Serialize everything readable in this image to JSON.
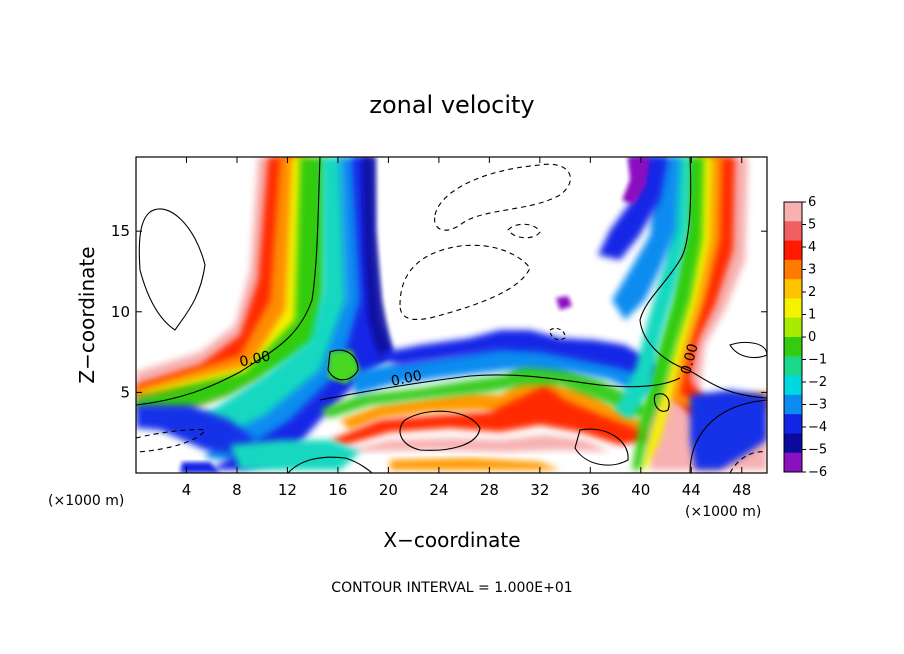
{
  "chart_data": {
    "type": "heatmap",
    "title": "zonal velocity",
    "xlabel": "X−coordinate",
    "ylabel": "Z−coordinate",
    "x_unit_left": "(×1000 m)",
    "x_unit_right": "(×1000 m)",
    "footer": "CONTOUR INTERVAL = 1.000E+01",
    "xlim": [
      0,
      50
    ],
    "ylim": [
      0,
      19.6
    ],
    "x_ticks": [
      4,
      8,
      12,
      16,
      20,
      24,
      28,
      32,
      36,
      40,
      44,
      48
    ],
    "x_tick_labels": [
      "4",
      "8",
      "12",
      "16",
      "20",
      "24",
      "28",
      "32",
      "36",
      "40",
      "44",
      "48"
    ],
    "y_ticks": [
      5,
      10,
      15
    ],
    "y_tick_labels": [
      "5",
      "10",
      "15"
    ],
    "colorbar": {
      "levels": [
        6,
        5,
        4,
        3,
        2,
        1,
        0,
        -1,
        -2,
        -3,
        -4,
        -5,
        -6
      ],
      "labels": [
        "6",
        "5",
        "4",
        "3",
        "2",
        "1",
        "0",
        "−1",
        "−2",
        "−3",
        "−4",
        "−5",
        "−6"
      ],
      "colors": [
        "#f7b1b1",
        "#f06060",
        "#ff1a00",
        "#ff7a00",
        "#ffc400",
        "#f4f200",
        "#a8ea00",
        "#33cc10",
        "#19d88c",
        "#00d8e0",
        "#0a8cf0",
        "#1226e6",
        "#0a0a9c",
        "#8a10c0"
      ],
      "white_band": [
        -1,
        1
      ]
    },
    "zero_contour_labels": [
      {
        "text": "0.00",
        "x": 9.5,
        "z": 6.8
      },
      {
        "text": "0.00",
        "x": 21.5,
        "z": 5.6
      },
      {
        "text": "0.00",
        "x": 44.2,
        "z": 7.0
      }
    ]
  }
}
